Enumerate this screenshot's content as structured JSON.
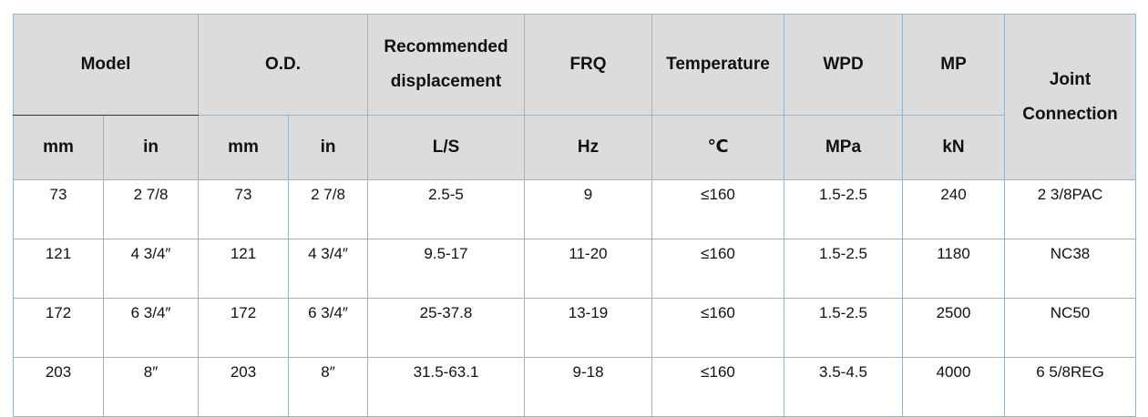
{
  "table": {
    "header_top": {
      "model": "Model",
      "od": "O.D.",
      "recommended_line1": "Recommended",
      "recommended_line2": "displacement",
      "frq": "FRQ",
      "temperature": "Temperature",
      "wpd": "WPD",
      "mp": "MP",
      "joint_line1": "Joint",
      "joint_line2": "Connection"
    },
    "header_units": [
      "mm",
      "in",
      "mm",
      "in",
      "L/S",
      "Hz",
      "℃",
      "MPa",
      "kN"
    ],
    "rows": [
      [
        "73",
        "2 7/8",
        "73",
        "2 7/8",
        "2.5-5",
        "9",
        "≤160",
        "1.5-2.5",
        "240",
        "2 3/8PAC"
      ],
      [
        "121",
        "4 3/4″",
        "121",
        "4 3/4″",
        "9.5-17",
        "11-20",
        "≤160",
        "1.5-2.5",
        "1180",
        "NC38"
      ],
      [
        "172",
        "6 3/4″",
        "172",
        "6 3/4″",
        "25-37.8",
        "13-19",
        "≤160",
        "1.5-2.5",
        "2500",
        "NC50"
      ],
      [
        "203",
        "8″",
        "203",
        "8″",
        "31.5-63.1",
        "9-18",
        "≤160",
        "3.5-4.5",
        "4000",
        "6 5/8REG"
      ]
    ]
  }
}
